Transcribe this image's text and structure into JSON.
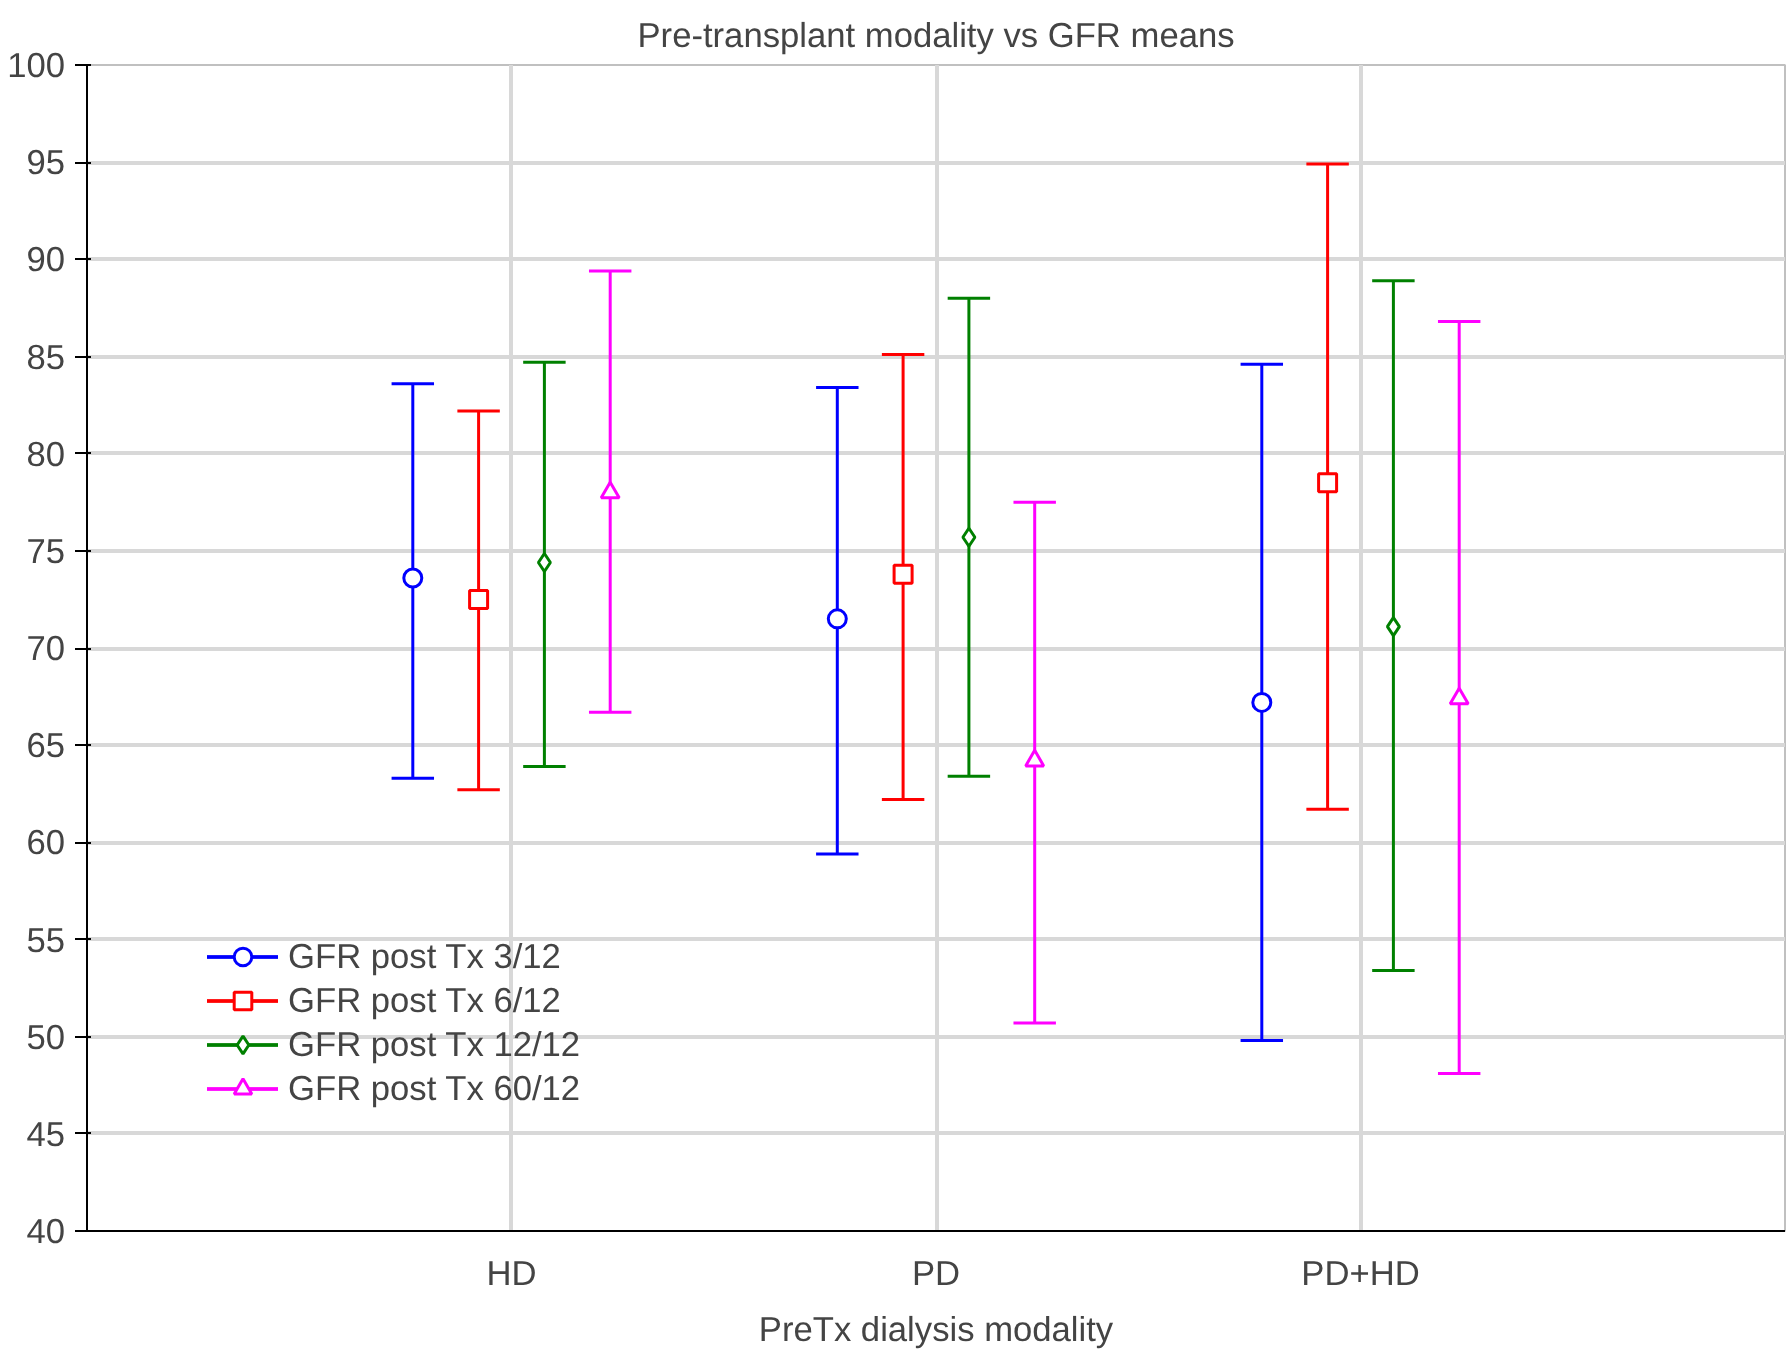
{
  "chart_data": {
    "type": "scatter",
    "title": "Pre-transplant modality vs GFR means",
    "xlabel": "PreTx dialysis modality",
    "categories": [
      "HD",
      "PD",
      "PD+HD"
    ],
    "series": [
      {
        "name": "GFR post Tx 3/12",
        "color": "#0000ff",
        "marker": "circle",
        "values": [
          73.6,
          71.5,
          67.2
        ],
        "errors": [
          [
            63.3,
            83.6
          ],
          [
            59.4,
            83.4
          ],
          [
            49.8,
            84.6
          ]
        ]
      },
      {
        "name": "GFR post Tx 6/12",
        "color": "#ff0000",
        "marker": "square",
        "values": [
          72.5,
          73.8,
          78.5
        ],
        "errors": [
          [
            62.7,
            82.2
          ],
          [
            62.2,
            85.1
          ],
          [
            61.7,
            94.9
          ]
        ]
      },
      {
        "name": "GFR post Tx 12/12",
        "color": "#008000",
        "marker": "diamond",
        "values": [
          74.4,
          75.7,
          71.1
        ],
        "errors": [
          [
            63.9,
            84.7
          ],
          [
            63.4,
            88.0
          ],
          [
            53.4,
            88.9
          ]
        ]
      },
      {
        "name": "GFR post Tx 60/12",
        "color": "#ff00ff",
        "marker": "triangle",
        "values": [
          78.0,
          64.2,
          67.4
        ],
        "errors": [
          [
            66.7,
            89.4
          ],
          [
            50.7,
            77.5
          ],
          [
            48.1,
            86.8
          ]
        ]
      }
    ],
    "ylim": [
      40,
      100
    ],
    "yticks": [
      40,
      45,
      50,
      55,
      60,
      65,
      70,
      75,
      80,
      85,
      90,
      95,
      100
    ],
    "grid": true,
    "legend": "bottom left"
  }
}
